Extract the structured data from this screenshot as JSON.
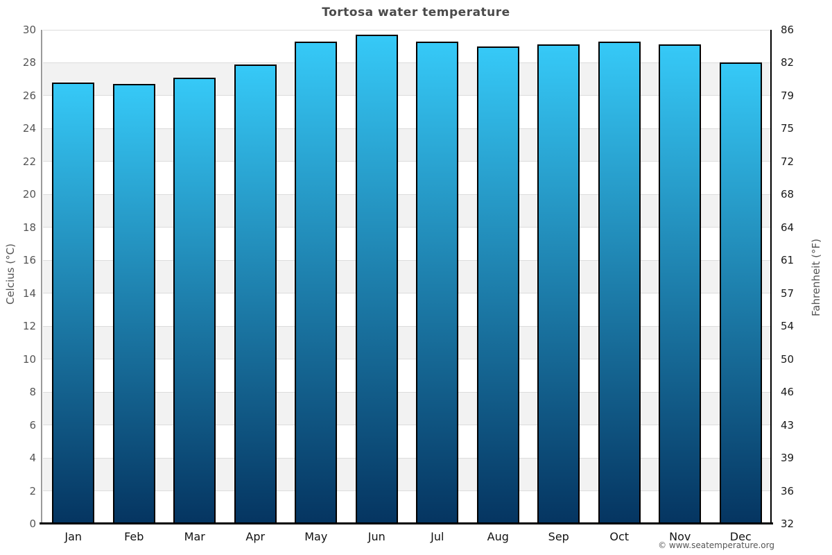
{
  "title": "Tortosa water temperature",
  "copyright": "© www.seatemperature.org",
  "axes": {
    "left_label": "Celcius (°C)",
    "right_label": "Fahrenheit (°F)"
  },
  "colors": {
    "bar_gradient_top": "#36c9f7",
    "bar_gradient_bottom": "#053561",
    "bar_border": "#000000",
    "band_fill": "#f2f2f2",
    "gridline": "#dcdcdc",
    "title_text": "#4a4a4a",
    "tick_text_left": "#555555",
    "tick_text_right": "#1a1a1a"
  },
  "chart_data": {
    "type": "bar",
    "title": "Tortosa water temperature",
    "categories": [
      "Jan",
      "Feb",
      "Mar",
      "Apr",
      "May",
      "Jun",
      "Jul",
      "Aug",
      "Sep",
      "Oct",
      "Nov",
      "Dec"
    ],
    "values": [
      26.8,
      26.7,
      27.1,
      27.9,
      29.3,
      29.7,
      29.3,
      29.0,
      29.1,
      29.3,
      29.1,
      28.0
    ],
    "unit": "°C",
    "xlabel": "",
    "ylabel": "Celcius (°C)",
    "ylabel_right": "Fahrenheit (°F)",
    "ylim": [
      0,
      30
    ],
    "yticks_celsius": [
      0,
      2,
      4,
      6,
      8,
      10,
      12,
      14,
      16,
      18,
      20,
      22,
      24,
      26,
      28,
      30
    ],
    "yticks_fahrenheit": [
      32,
      36,
      39,
      43,
      46,
      50,
      54,
      57,
      61,
      64,
      68,
      72,
      75,
      79,
      82,
      86
    ],
    "grid": "alternating horizontal bands every 2 degrees, light gridlines at even values",
    "legend": "none"
  }
}
